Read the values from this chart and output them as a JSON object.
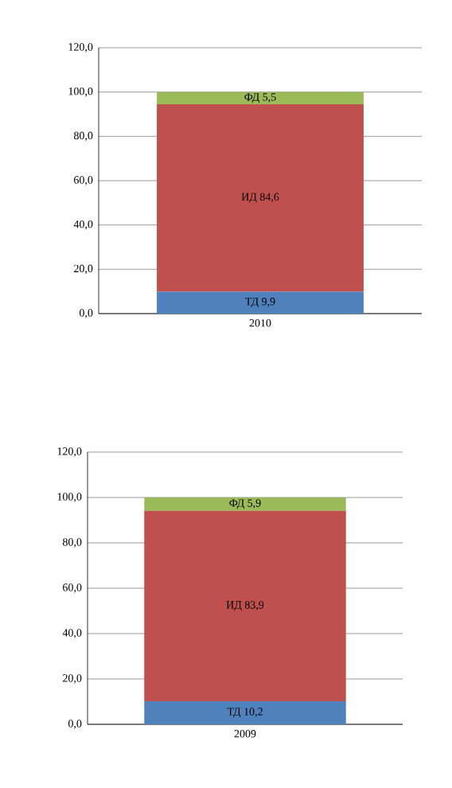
{
  "chart_data": [
    {
      "type": "bar",
      "stacked": true,
      "categories": [
        "2010"
      ],
      "ylim": [
        0,
        120
      ],
      "yticks": [
        {
          "value": 0,
          "label": "0,0"
        },
        {
          "value": 20,
          "label": "20,0"
        },
        {
          "value": 40,
          "label": "40,0"
        },
        {
          "value": 60,
          "label": "60,0"
        },
        {
          "value": 80,
          "label": "80,0"
        },
        {
          "value": 100,
          "label": "100,0"
        },
        {
          "value": 120,
          "label": "120,0"
        }
      ],
      "grid": "y",
      "series": [
        {
          "color": "#4f81bd",
          "values": [
            9.9
          ],
          "value_labels": [
            "ТД 9,9"
          ]
        },
        {
          "color": "#c0504d",
          "values": [
            84.6
          ],
          "value_labels": [
            "ИД 84,6"
          ]
        },
        {
          "color": "#9bbb59",
          "values": [
            5.5
          ],
          "value_labels": [
            "ФД 5,5"
          ]
        }
      ]
    },
    {
      "type": "bar",
      "stacked": true,
      "categories": [
        "2009"
      ],
      "ylim": [
        0,
        120
      ],
      "yticks": [
        {
          "value": 0,
          "label": "0,0"
        },
        {
          "value": 20,
          "label": "20,0"
        },
        {
          "value": 40,
          "label": "40,0"
        },
        {
          "value": 60,
          "label": "60,0"
        },
        {
          "value": 80,
          "label": "80,0"
        },
        {
          "value": 100,
          "label": "100,0"
        },
        {
          "value": 120,
          "label": "120,0"
        }
      ],
      "grid": "y",
      "series": [
        {
          "color": "#4f81bd",
          "values": [
            10.2
          ],
          "value_labels": [
            "ТД 10,2"
          ]
        },
        {
          "color": "#c0504d",
          "values": [
            83.9
          ],
          "value_labels": [
            "ИД 83,9"
          ]
        },
        {
          "color": "#9bbb59",
          "values": [
            5.9
          ],
          "value_labels": [
            "ФД 5,9"
          ]
        }
      ]
    }
  ]
}
